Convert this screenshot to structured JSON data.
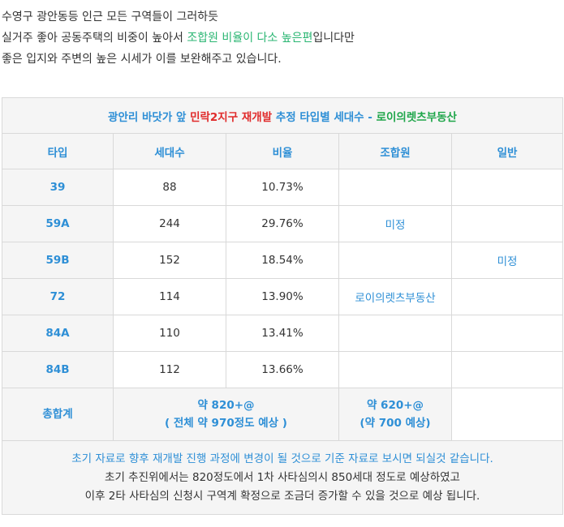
{
  "intro": {
    "line1": "수영구 광안동등 인근 모든 구역들이 그러하듯",
    "line2_pre": "실거주 좋아 공동주택의 비중이 높아서 ",
    "line2_highlight": "조합원 비율이 다소 높은편",
    "line2_post": "입니다만",
    "line3": "좋은 입지와 주변의 높은 시세가 이를 보완해주고 있습니다."
  },
  "table": {
    "title_pre": "광안리 바닷가 앞 ",
    "title_red": "민락2지구 재개발",
    "title_mid": " 추정 타입별 세대수 - ",
    "title_green": "로이의렛츠부동산",
    "headers": [
      "타입",
      "세대수",
      "비율",
      "조합원",
      "일반"
    ],
    "rows": [
      {
        "type": "39",
        "units": "88",
        "ratio": "10.73%",
        "member": "",
        "general": ""
      },
      {
        "type": "59A",
        "units": "244",
        "ratio": "29.76%",
        "member": "미정",
        "general": ""
      },
      {
        "type": "59B",
        "units": "152",
        "ratio": "18.54%",
        "member": "",
        "general": "미정"
      },
      {
        "type": "72",
        "units": "114",
        "ratio": "13.90%",
        "member": "로이의렛츠부동산",
        "general": ""
      },
      {
        "type": "84A",
        "units": "110",
        "ratio": "13.41%",
        "member": "",
        "general": ""
      },
      {
        "type": "84B",
        "units": "112",
        "ratio": "13.66%",
        "member": "",
        "general": ""
      }
    ],
    "total": {
      "label": "총합계",
      "units_line1": "약 820+@",
      "units_line2": "( 전체 약 970정도 예상 )",
      "member_line1": "약 620+@",
      "member_line2": "(약 700 예상)"
    },
    "note": {
      "line1": "초기 자료로 향후 재개발 진행 과정에 변경이 될 것으로 기준 자료로 보시면 되실것 같습니다.",
      "line2": "초기 추진위에서는 820정도에서 1차 사타심의시 850세대 정도로 예상하였고",
      "line3": "이후 2타 사타심의 신청시 구역계 확정으로 조금더 증가할 수 있을 것으로 예상 됩니다."
    }
  }
}
